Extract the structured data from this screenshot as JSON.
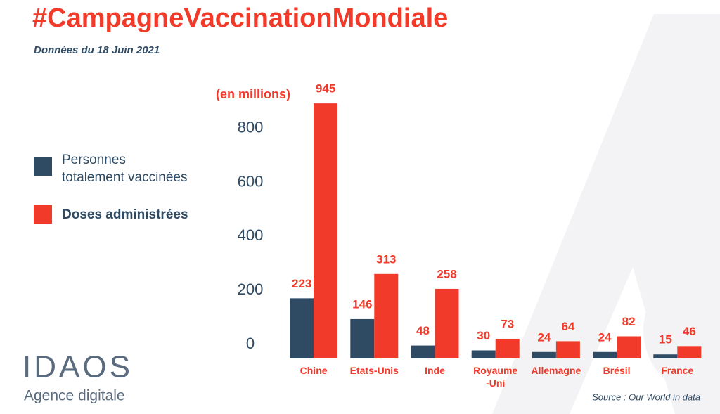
{
  "chart_data": {
    "type": "bar",
    "title": "#CampagneVaccinationMondiale",
    "subtitle": "Données du 18 Juin 2021",
    "y_label": "(en millions)",
    "source": "Source : Our World in data",
    "categories": [
      "Chine",
      "Etats-Unis",
      "Inde",
      "Royaume\n-Uni",
      "Allemagne",
      "Brésil",
      "France"
    ],
    "series": [
      {
        "name": "Personnes\ntotalement vaccinées",
        "color": "#2f4a63",
        "values": [
          223,
          146,
          48,
          30,
          24,
          24,
          15
        ]
      },
      {
        "name": "Doses administrées",
        "color": "#f23a2b",
        "values": [
          945,
          313,
          258,
          73,
          64,
          82,
          46
        ]
      }
    ],
    "ylim": [
      0,
      1000
    ],
    "yticks": [
      0,
      200,
      400,
      600,
      800
    ],
    "grid": false
  },
  "logo": {
    "name": "IDAOS",
    "tagline": "Agence digitale"
  }
}
